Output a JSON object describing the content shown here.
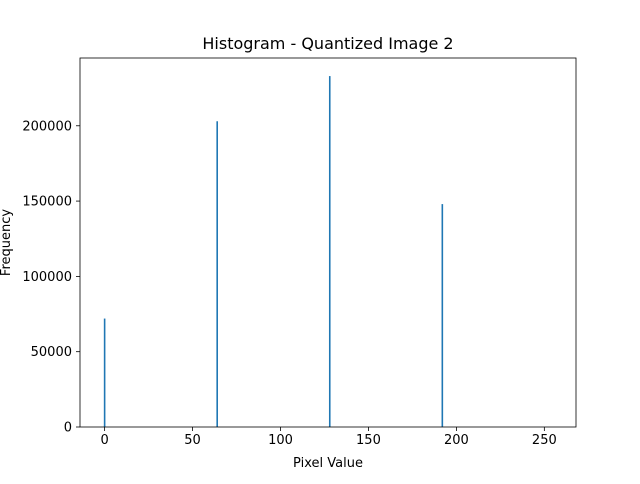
{
  "chart_data": {
    "type": "bar",
    "title": "Histogram - Quantized Image 2",
    "xlabel": "Pixel Value",
    "ylabel": "Frequency",
    "xlim": [
      -14,
      268
    ],
    "ylim": [
      0,
      245000
    ],
    "xticks": [
      0,
      50,
      100,
      150,
      200,
      250
    ],
    "yticks": [
      0,
      50000,
      100000,
      150000,
      200000
    ],
    "x": [
      0,
      64,
      128,
      192
    ],
    "values": [
      72000,
      203000,
      233000,
      148000
    ],
    "bar_color": "#1f77b4",
    "grid": false,
    "legend": "none"
  }
}
